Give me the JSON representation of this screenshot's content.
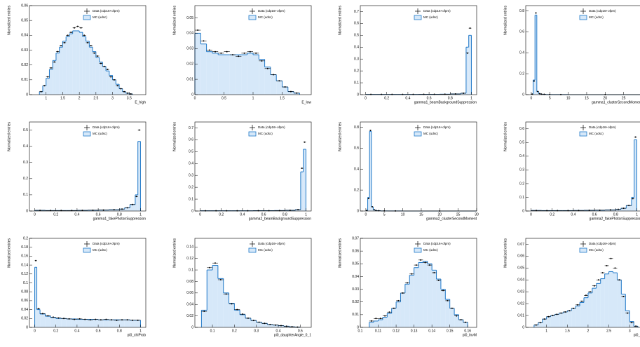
{
  "chart_data": [
    {
      "type": "histogram",
      "x_label": "E_high",
      "y_label": "Normalized entries",
      "xlim": [
        0.5,
        4
      ],
      "ylim": [
        0,
        0.06
      ],
      "xticks": [
        1,
        1.5,
        2,
        2.5,
        3,
        3.5
      ],
      "yticks": [
        0,
        0.01,
        0.02,
        0.03,
        0.04,
        0.05,
        0.06
      ],
      "bins": [
        0.8,
        0.9,
        1.0,
        1.1,
        1.2,
        1.3,
        1.4,
        1.5,
        1.6,
        1.7,
        1.8,
        1.9,
        2.0,
        2.1,
        2.2,
        2.3,
        2.4,
        2.5,
        2.6,
        2.7,
        2.8,
        2.9,
        3.0,
        3.1,
        3.2,
        3.3,
        3.4,
        3.5,
        3.6
      ],
      "series": [
        {
          "name": "MC (udsc)",
          "color": "#1f78c8",
          "values": [
            0.002,
            0.006,
            0.011,
            0.017,
            0.023,
            0.028,
            0.032,
            0.036,
            0.039,
            0.041,
            0.043,
            0.043,
            0.042,
            0.039,
            0.036,
            0.032,
            0.029,
            0.025,
            0.022,
            0.019,
            0.016,
            0.013,
            0.01,
            0.007,
            0.004,
            0.002,
            0.001,
            0.0005
          ]
        },
        {
          "name": "Data (cdp16+ofpm)",
          "color": "#000000",
          "values": [
            0.002,
            0.006,
            0.012,
            0.018,
            0.022,
            0.029,
            0.033,
            0.035,
            0.04,
            0.042,
            0.045,
            0.046,
            0.045,
            0.04,
            0.035,
            0.033,
            0.028,
            0.026,
            0.021,
            0.019,
            0.017,
            0.012,
            0.01,
            0.006,
            0.004,
            0.002,
            0.001,
            0.0005
          ]
        }
      ]
    },
    {
      "type": "histogram",
      "x_label": "E_low",
      "y_label": "Normalized entries",
      "xlim": [
        0,
        2
      ],
      "ylim": [
        0,
        0.058
      ],
      "xticks": [
        0,
        0.5,
        1,
        1.5
      ],
      "yticks": [
        0,
        0.01,
        0.02,
        0.03,
        0.04,
        0.05
      ],
      "bins": [
        0,
        0.1,
        0.2,
        0.3,
        0.4,
        0.5,
        0.6,
        0.7,
        0.8,
        0.9,
        1.0,
        1.1,
        1.2,
        1.3,
        1.4,
        1.5,
        1.6,
        1.7,
        1.8
      ],
      "series": [
        {
          "name": "MC (udsc)",
          "color": "#1f78c8",
          "values": [
            0.04,
            0.033,
            0.028,
            0.027,
            0.026,
            0.026,
            0.026,
            0.026,
            0.026,
            0.027,
            0.026,
            0.023,
            0.018,
            0.013,
            0.009,
            0.005,
            0.002,
            0.001
          ]
        },
        {
          "name": "Data (cdp16+ofpm)",
          "color": "#000000",
          "values": [
            0.042,
            0.035,
            0.029,
            0.028,
            0.027,
            0.028,
            0.026,
            0.025,
            0.027,
            0.028,
            0.027,
            0.022,
            0.017,
            0.013,
            0.009,
            0.005,
            0.002,
            0.001
          ]
        }
      ]
    },
    {
      "type": "histogram",
      "x_label": "gamma1_beamBackgroundSuppression",
      "y_label": "Normalized entries",
      "xlim": [
        -0.05,
        1.05
      ],
      "ylim": [
        0,
        0.75
      ],
      "xticks": [
        0,
        0.2,
        0.4,
        0.6,
        0.8,
        1
      ],
      "yticks": [
        0,
        0.1,
        0.2,
        0.3,
        0.4,
        0.5,
        0.6,
        0.7
      ],
      "bins": [
        0,
        0.1,
        0.2,
        0.3,
        0.4,
        0.5,
        0.6,
        0.7,
        0.8,
        0.9,
        0.95,
        0.975,
        1
      ],
      "series": [
        {
          "name": "MC (udsc)",
          "color": "#1f78c8",
          "values": [
            0.002,
            0.002,
            0.002,
            0.002,
            0.002,
            0.003,
            0.003,
            0.004,
            0.006,
            0.012,
            0.4,
            0.5
          ]
        },
        {
          "name": "Data (cdp16+ofpm)",
          "color": "#000000",
          "values": [
            0.002,
            0.002,
            0.002,
            0.002,
            0.002,
            0.003,
            0.003,
            0.004,
            0.006,
            0.012,
            0.35,
            0.56
          ]
        }
      ]
    },
    {
      "type": "histogram",
      "x_label": "gamma1_clusterSecondMoment",
      "y_label": "Normalized entries",
      "xlim": [
        -1.5,
        30
      ],
      "ylim": [
        0,
        0.85
      ],
      "xticks": [
        0,
        5,
        10,
        15,
        20,
        25,
        30
      ],
      "yticks": [
        0,
        0.2,
        0.4,
        0.6,
        0.8
      ],
      "bins": [
        0,
        0.5,
        1,
        1.5,
        2,
        2.5,
        3,
        4,
        6,
        10,
        30
      ],
      "series": [
        {
          "name": "MC (udsc)",
          "color": "#1f78c8",
          "values": [
            0.005,
            0.14,
            0.76,
            0.03,
            0.01,
            0.005,
            0.003,
            0.001,
            0.0005,
            0.0001
          ]
        },
        {
          "name": "Data (cdp16+ofpm)",
          "color": "#000000",
          "values": [
            0.005,
            0.13,
            0.78,
            0.03,
            0.01,
            0.005,
            0.003,
            0.001,
            0.0005,
            0.0001
          ]
        }
      ]
    },
    {
      "type": "histogram",
      "x_label": "gamma1_fakePhotonSuppression",
      "y_label": "Normalized entries",
      "xlim": [
        -0.05,
        1.05
      ],
      "ylim": [
        0,
        0.55
      ],
      "xticks": [
        0,
        0.2,
        0.4,
        0.6,
        0.8,
        1
      ],
      "yticks": [
        0,
        0.1,
        0.2,
        0.3,
        0.4,
        0.5
      ],
      "bins": [
        0,
        0.1,
        0.2,
        0.3,
        0.4,
        0.5,
        0.6,
        0.7,
        0.8,
        0.85,
        0.9,
        0.95,
        0.975,
        1
      ],
      "series": [
        {
          "name": "MC (udsc)",
          "color": "#1f78c8",
          "values": [
            0.004,
            0.003,
            0.003,
            0.003,
            0.004,
            0.005,
            0.006,
            0.008,
            0.012,
            0.02,
            0.04,
            0.1,
            0.43
          ]
        },
        {
          "name": "Data (cdp16+ofpm)",
          "color": "#000000",
          "values": [
            0.004,
            0.003,
            0.003,
            0.003,
            0.004,
            0.005,
            0.006,
            0.008,
            0.012,
            0.02,
            0.04,
            0.09,
            0.5
          ]
        }
      ]
    },
    {
      "type": "histogram",
      "x_label": "gamma2_beamBackgroundSuppression",
      "y_label": "Normalized entries",
      "xlim": [
        -0.05,
        1.05
      ],
      "ylim": [
        0,
        0.75
      ],
      "xticks": [
        0,
        0.2,
        0.4,
        0.6,
        0.8,
        1
      ],
      "yticks": [
        0,
        0.1,
        0.2,
        0.3,
        0.4,
        0.5,
        0.6,
        0.7
      ],
      "bins": [
        0,
        0.1,
        0.2,
        0.3,
        0.4,
        0.5,
        0.6,
        0.7,
        0.8,
        0.9,
        0.95,
        0.975,
        1
      ],
      "series": [
        {
          "name": "MC (udsc)",
          "color": "#1f78c8",
          "values": [
            0.002,
            0.002,
            0.002,
            0.002,
            0.002,
            0.003,
            0.003,
            0.004,
            0.006,
            0.012,
            0.33,
            0.52
          ]
        },
        {
          "name": "Data (cdp16+ofpm)",
          "color": "#000000",
          "values": [
            0.002,
            0.002,
            0.002,
            0.002,
            0.002,
            0.003,
            0.003,
            0.004,
            0.006,
            0.012,
            0.36,
            0.58
          ]
        }
      ]
    },
    {
      "type": "histogram",
      "x_label": "gamma2_clusterSecondMoment",
      "y_label": "Normalized entries",
      "xlim": [
        -1.5,
        30
      ],
      "ylim": [
        0,
        0.85
      ],
      "xticks": [
        0,
        5,
        10,
        15,
        20,
        25,
        30
      ],
      "yticks": [
        0,
        0.2,
        0.4,
        0.6,
        0.8
      ],
      "bins": [
        0,
        0.5,
        1,
        1.5,
        2,
        2.5,
        3,
        4,
        6,
        10,
        30
      ],
      "series": [
        {
          "name": "MC (udsc)",
          "color": "#1f78c8",
          "values": [
            0.005,
            0.13,
            0.76,
            0.04,
            0.012,
            0.005,
            0.003,
            0.001,
            0.0005,
            0.0001
          ]
        },
        {
          "name": "Data (cdp16+ofpm)",
          "color": "#000000",
          "values": [
            0.005,
            0.12,
            0.77,
            0.04,
            0.012,
            0.005,
            0.003,
            0.001,
            0.0005,
            0.0001
          ]
        }
      ]
    },
    {
      "type": "histogram",
      "x_label": "gamma2_fakePhotonSuppression",
      "y_label": "Normalized entries",
      "xlim": [
        -0.05,
        1.05
      ],
      "ylim": [
        0,
        0.65
      ],
      "xticks": [
        0,
        0.2,
        0.4,
        0.6,
        0.8,
        1
      ],
      "yticks": [
        0,
        0.1,
        0.2,
        0.3,
        0.4,
        0.5,
        0.6
      ],
      "bins": [
        0,
        0.1,
        0.2,
        0.3,
        0.4,
        0.5,
        0.6,
        0.7,
        0.8,
        0.85,
        0.9,
        0.95,
        0.975,
        1
      ],
      "series": [
        {
          "name": "MC (udsc)",
          "color": "#1f78c8",
          "values": [
            0.004,
            0.003,
            0.003,
            0.003,
            0.004,
            0.005,
            0.006,
            0.008,
            0.012,
            0.02,
            0.04,
            0.1,
            0.52
          ]
        },
        {
          "name": "Data (cdp16+ofpm)",
          "color": "#000000",
          "values": [
            0.004,
            0.003,
            0.003,
            0.003,
            0.004,
            0.005,
            0.006,
            0.008,
            0.012,
            0.02,
            0.04,
            0.09,
            0.54
          ]
        }
      ]
    },
    {
      "type": "histogram",
      "x_label": "pi0_chiProb",
      "y_label": "Normalized entries",
      "xlim": [
        -0.05,
        1.05
      ],
      "ylim": [
        0,
        0.2
      ],
      "xticks": [
        0,
        0.2,
        0.4,
        0.6,
        0.8,
        1
      ],
      "yticks": [
        0,
        0.02,
        0.04,
        0.06,
        0.08,
        0.1,
        0.12,
        0.14,
        0.16,
        0.18,
        0.2
      ],
      "bins": [
        0,
        0.02,
        0.05,
        0.1,
        0.15,
        0.2,
        0.25,
        0.3,
        0.35,
        0.4,
        0.45,
        0.5,
        0.55,
        0.6,
        0.65,
        0.7,
        0.75,
        0.8,
        0.85,
        0.9,
        0.95,
        1
      ],
      "series": [
        {
          "name": "MC (udsc)",
          "color": "#1f78c8",
          "values": [
            0.135,
            0.04,
            0.03,
            0.025,
            0.022,
            0.02,
            0.02,
            0.019,
            0.019,
            0.018,
            0.018,
            0.018,
            0.018,
            0.017,
            0.017,
            0.017,
            0.017,
            0.017,
            0.017,
            0.016,
            0.016
          ]
        },
        {
          "name": "Data (cdp16+ofpm)",
          "color": "#000000",
          "values": [
            0.15,
            0.042,
            0.031,
            0.026,
            0.023,
            0.021,
            0.02,
            0.019,
            0.018,
            0.019,
            0.018,
            0.017,
            0.018,
            0.017,
            0.018,
            0.017,
            0.016,
            0.017,
            0.017,
            0.016,
            0.016
          ]
        }
      ]
    },
    {
      "type": "histogram",
      "x_label": "pi0_daughterAngle_0_1",
      "y_label": "Normalized entries",
      "xlim": [
        0.02,
        0.55
      ],
      "ylim": [
        0,
        0.155
      ],
      "xticks": [
        0.1,
        0.2,
        0.3,
        0.4,
        0.5
      ],
      "yticks": [
        0,
        0.02,
        0.04,
        0.06,
        0.08,
        0.1,
        0.12,
        0.14
      ],
      "bins": [
        0.05,
        0.075,
        0.1,
        0.125,
        0.15,
        0.175,
        0.2,
        0.225,
        0.25,
        0.275,
        0.3,
        0.325,
        0.35,
        0.375,
        0.4,
        0.425,
        0.45,
        0.475,
        0.5
      ],
      "series": [
        {
          "name": "MC (udsc)",
          "color": "#1f78c8",
          "values": [
            0.03,
            0.1,
            0.108,
            0.085,
            0.06,
            0.042,
            0.03,
            0.022,
            0.016,
            0.012,
            0.009,
            0.007,
            0.005,
            0.004,
            0.003,
            0.002,
            0.001,
            0.0005
          ]
        },
        {
          "name": "Data (cdp16+ofpm)",
          "color": "#000000",
          "values": [
            0.028,
            0.104,
            0.112,
            0.083,
            0.058,
            0.041,
            0.031,
            0.023,
            0.016,
            0.012,
            0.009,
            0.007,
            0.005,
            0.004,
            0.003,
            0.002,
            0.001,
            0.0005
          ]
        }
      ]
    },
    {
      "type": "histogram",
      "x_label": "pi0_InvM",
      "y_label": "Normalized entries",
      "xlim": [
        0.1,
        0.165
      ],
      "ylim": [
        0,
        0.07
      ],
      "xticks": [
        0.1,
        0.11,
        0.12,
        0.13,
        0.14,
        0.15,
        0.16
      ],
      "yticks": [
        0,
        0.01,
        0.02,
        0.03,
        0.04,
        0.05,
        0.06,
        0.07
      ],
      "bins": [
        0.105,
        0.1075,
        0.11,
        0.1125,
        0.115,
        0.1175,
        0.12,
        0.1225,
        0.125,
        0.1275,
        0.13,
        0.1325,
        0.135,
        0.1375,
        0.14,
        0.1425,
        0.145,
        0.1475,
        0.15,
        0.1525,
        0.155,
        0.1575,
        0.16
      ],
      "series": [
        {
          "name": "MC (udsc)",
          "color": "#1f78c8",
          "values": [
            0.004,
            0.005,
            0.006,
            0.008,
            0.011,
            0.015,
            0.02,
            0.027,
            0.034,
            0.041,
            0.047,
            0.051,
            0.052,
            0.05,
            0.045,
            0.038,
            0.03,
            0.022,
            0.015,
            0.01,
            0.006,
            0.004
          ]
        },
        {
          "name": "Data (cdp16+ofpm)",
          "color": "#000000",
          "values": [
            0.005,
            0.007,
            0.007,
            0.009,
            0.012,
            0.015,
            0.021,
            0.027,
            0.035,
            0.042,
            0.049,
            0.053,
            0.051,
            0.049,
            0.043,
            0.037,
            0.029,
            0.021,
            0.015,
            0.009,
            0.006,
            0.004
          ]
        }
      ]
    },
    {
      "type": "histogram",
      "x_label": "pi0_p",
      "y_label": "Normalized entries",
      "xlim": [
        0.5,
        3.3
      ],
      "ylim": [
        0,
        0.075
      ],
      "xticks": [
        1,
        1.5,
        2,
        2.5,
        3
      ],
      "yticks": [
        0,
        0.01,
        0.02,
        0.03,
        0.04,
        0.05,
        0.06,
        0.07
      ],
      "bins": [
        0.7,
        0.8,
        0.9,
        1.0,
        1.1,
        1.2,
        1.3,
        1.4,
        1.5,
        1.6,
        1.7,
        1.8,
        1.9,
        2.0,
        2.1,
        2.2,
        2.3,
        2.4,
        2.5,
        2.6,
        2.7,
        2.8,
        2.9,
        3.0,
        3.1,
        3.2
      ],
      "series": [
        {
          "name": "MC (udsc)",
          "color": "#1f78c8",
          "values": [
            0.002,
            0.004,
            0.007,
            0.009,
            0.01,
            0.011,
            0.012,
            0.013,
            0.014,
            0.016,
            0.018,
            0.021,
            0.025,
            0.029,
            0.033,
            0.037,
            0.041,
            0.045,
            0.047,
            0.046,
            0.04,
            0.028,
            0.014,
            0.005,
            0.001
          ]
        },
        {
          "name": "Data (cdp16+ofpm)",
          "color": "#000000",
          "values": [
            0.002,
            0.004,
            0.007,
            0.009,
            0.01,
            0.011,
            0.012,
            0.013,
            0.014,
            0.016,
            0.019,
            0.022,
            0.027,
            0.03,
            0.035,
            0.04,
            0.046,
            0.052,
            0.058,
            0.05,
            0.04,
            0.026,
            0.012,
            0.004,
            0.001
          ]
        }
      ]
    }
  ]
}
